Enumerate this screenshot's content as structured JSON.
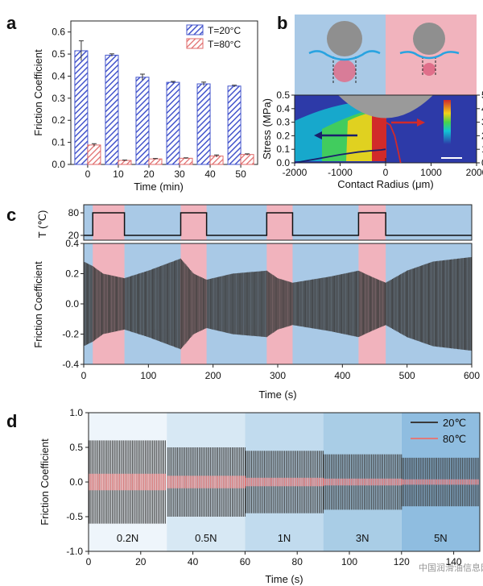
{
  "panels": {
    "a": "a",
    "b": "b",
    "c": "c",
    "d": "d"
  },
  "colors": {
    "blue": "#4455cc",
    "red": "#e06a6a",
    "pinkfill": "#f1b3bd",
    "bluefill": "#a9c9e6",
    "dark": "#3a3a3a"
  },
  "chart_data": [
    {
      "id": "a",
      "type": "bar",
      "xlabel": "Time (min)",
      "ylabel": "Friction Coefficient",
      "categories": [
        "0",
        "10",
        "20",
        "30",
        "40",
        "50"
      ],
      "ylim": [
        0,
        0.65
      ],
      "yticks": [
        0.0,
        0.1,
        0.2,
        0.3,
        0.4,
        0.5,
        0.6
      ],
      "series": [
        {
          "name": "T=20°C",
          "values": [
            0.515,
            0.495,
            0.395,
            0.372,
            0.365,
            0.355
          ],
          "errors": [
            0.045,
            0.006,
            0.014,
            0.004,
            0.008,
            0.004
          ]
        },
        {
          "name": "T=80°C",
          "values": [
            0.088,
            0.018,
            0.025,
            0.028,
            0.038,
            0.045
          ],
          "errors": [
            0.006,
            0.002,
            0.002,
            0.002,
            0.005,
            0.003
          ]
        }
      ],
      "legend": "top-right"
    },
    {
      "id": "b",
      "type": "line",
      "xlabel": "Contact Radius (μm)",
      "ylabel": "Stress (MPa)",
      "xlim": [
        -2000,
        2000
      ],
      "xticks": [
        -2000,
        -1000,
        0,
        1000,
        2000
      ],
      "ylim": [
        0,
        0.5
      ],
      "yticks": [
        0.0,
        0.1,
        0.2,
        0.3,
        0.4,
        0.5
      ],
      "y2lim": [
        0,
        5
      ],
      "y2ticks": [
        0,
        1,
        2,
        3,
        4,
        5
      ],
      "series": [
        {
          "x": [
            -2000,
            -1500,
            -1000,
            -600,
            -300,
            -100,
            0
          ],
          "y": [
            0.0,
            0.03,
            0.06,
            0.08,
            0.09,
            0.095,
            0.1
          ]
        },
        {
          "x": [
            0,
            100,
            200,
            280,
            330
          ],
          "y": [
            0.3,
            0.28,
            0.2,
            0.08,
            0.0
          ]
        }
      ]
    },
    {
      "id": "c",
      "type": "line",
      "xlabel": "Time (s)",
      "ylabel": "Friction Coefficient",
      "y2label": "T (℃)",
      "xlim": [
        0,
        600
      ],
      "xticks": [
        0,
        100,
        200,
        300,
        400,
        500,
        600
      ],
      "ylim": [
        -0.4,
        0.4
      ],
      "yticks": [
        -0.4,
        -0.2,
        0.0,
        0.2,
        0.4
      ],
      "tticks": [
        20,
        80
      ],
      "hot_intervals": [
        [
          14,
          63
        ],
        [
          150,
          190
        ],
        [
          283,
          323
        ],
        [
          425,
          467
        ]
      ],
      "envelope": {
        "t": [
          0,
          14,
          30,
          63,
          100,
          150,
          170,
          190,
          230,
          283,
          300,
          323,
          380,
          425,
          445,
          467,
          500,
          540,
          600
        ],
        "amp": [
          0.28,
          0.25,
          0.2,
          0.17,
          0.22,
          0.3,
          0.2,
          0.16,
          0.2,
          0.22,
          0.17,
          0.14,
          0.18,
          0.22,
          0.18,
          0.14,
          0.22,
          0.28,
          0.31
        ]
      }
    },
    {
      "id": "d",
      "type": "line",
      "xlabel": "Time (s)",
      "ylabel": "Friction Coefficient",
      "xlim": [
        0,
        150
      ],
      "xticks": [
        0,
        20,
        40,
        60,
        80,
        100,
        120,
        140
      ],
      "ylim": [
        -1.0,
        1.0
      ],
      "yticks": [
        -1.0,
        -0.5,
        0.0,
        0.5,
        1.0
      ],
      "load_segments": [
        {
          "label": "0.2N",
          "x0": 0,
          "x1": 30
        },
        {
          "label": "0.5N",
          "x0": 30,
          "x1": 60
        },
        {
          "label": "1N",
          "x0": 60,
          "x1": 90
        },
        {
          "label": "3N",
          "x0": 90,
          "x1": 120
        },
        {
          "label": "5N",
          "x0": 120,
          "x1": 150
        }
      ],
      "series": [
        {
          "name": "20℃",
          "amps": [
            0.6,
            0.5,
            0.45,
            0.4,
            0.35
          ]
        },
        {
          "name": "80℃",
          "amps": [
            0.12,
            0.09,
            0.06,
            0.05,
            0.04
          ]
        }
      ],
      "legend": "top-right"
    }
  ],
  "watermark": "中国润滑油信息网"
}
